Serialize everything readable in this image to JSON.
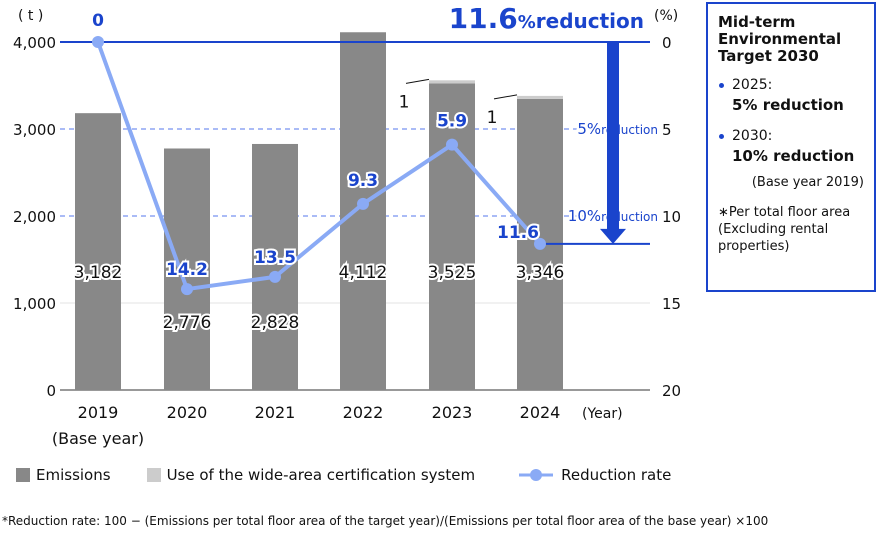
{
  "chart_data": {
    "type": "bar+line",
    "categories": [
      "2019",
      "2020",
      "2021",
      "2022",
      "2023",
      "2024"
    ],
    "category_sublabels": [
      "(Base year)",
      "",
      "",
      "",
      "",
      ""
    ],
    "x_unit": "(Year)",
    "left_axis": {
      "unit": "( t )",
      "ticks": [
        "0",
        "1,000",
        "2,000",
        "3,000",
        "4,000"
      ],
      "ylim": [
        0,
        4000
      ]
    },
    "right_axis": {
      "unit": "(%)",
      "ticks": [
        "0",
        "5",
        "10",
        "15",
        "20"
      ],
      "ylim": [
        0,
        20
      ],
      "inverted": true
    },
    "series": [
      {
        "name": "Emissions",
        "type": "bar",
        "values": [
          3182,
          2776,
          2828,
          4112,
          3525,
          3346
        ],
        "labels": [
          "3,182",
          "2,776",
          "2,828",
          "4,112",
          "3,525",
          "3,346"
        ],
        "color": "#888888"
      },
      {
        "name": "Use of the wide-area certification system",
        "type": "bar-stacked",
        "values": [
          0,
          0,
          0,
          0,
          1,
          1
        ],
        "labels": [
          "",
          "",
          "",
          "",
          "1",
          "1"
        ],
        "color": "#cccccc"
      },
      {
        "name": "Reduction rate",
        "type": "line",
        "axis": "right",
        "values": [
          0,
          14.2,
          13.5,
          9.3,
          5.9,
          11.6
        ],
        "labels": [
          "0",
          "14.2",
          "13.5",
          "9.3",
          "5.9",
          "11.6"
        ],
        "color": "#8aaaf5"
      }
    ],
    "reference_lines": [
      {
        "value": 5,
        "label_num": "5%",
        "label_text": "reduction"
      },
      {
        "value": 10,
        "label_num": "10%",
        "label_text": "reduction"
      }
    ],
    "headline": {
      "num": "11.6",
      "pct": "%",
      "text": "reduction"
    },
    "grid": true,
    "legend": "bottom"
  },
  "target_box": {
    "title": "Mid-term Environmental Target 2030",
    "items": [
      {
        "year": "2025:",
        "target": "5% reduction"
      },
      {
        "year": "2030:",
        "target": "10% reduction"
      }
    ],
    "base": "(Base year 2019)",
    "note": "∗Per total floor area (Excluding rental properties)"
  },
  "footnote": "*Reduction rate: 100 − (Emissions per total floor area of the target year)/(Emissions per total floor area of the base year) ×100",
  "colors": {
    "accent": "#1a44cc",
    "line": "#8aaaf5",
    "bar": "#888888",
    "cert": "#cccccc"
  }
}
